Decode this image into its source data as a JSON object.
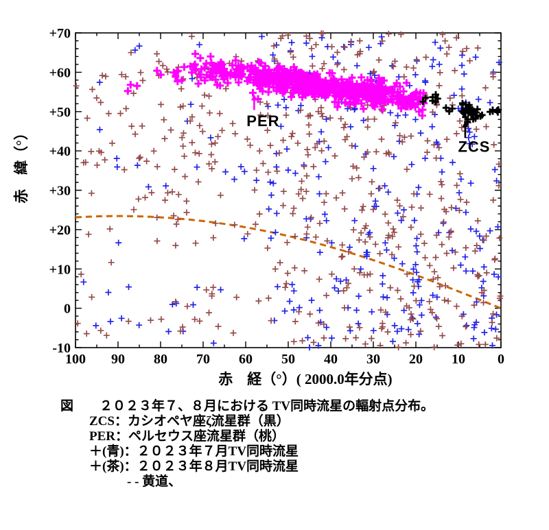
{
  "chart_data": {
    "type": "scatter",
    "title": "TV同時流星の輻射点分布",
    "xlabel": "赤　経（°）( 2000.0年分点)",
    "ylabel": "赤　緯（°）",
    "xlim": [
      100,
      0
    ],
    "ylim": [
      -10,
      70
    ],
    "x_minor_step": 5,
    "y_minor_step": 2,
    "grid": false,
    "legend_position": "below-figure-caption",
    "seed": 13,
    "x_ticks": [
      [
        100,
        "100"
      ],
      [
        90,
        "90"
      ],
      [
        80,
        "80"
      ],
      [
        70,
        "70"
      ],
      [
        60,
        "60"
      ],
      [
        50,
        "50"
      ],
      [
        40,
        "40"
      ],
      [
        30,
        "30"
      ],
      [
        20,
        "20"
      ],
      [
        10,
        "10"
      ],
      [
        0,
        "0"
      ]
    ],
    "y_ticks": [
      [
        70,
        "+70"
      ],
      [
        60,
        "+60"
      ],
      [
        50,
        "+50"
      ],
      [
        40,
        "+40"
      ],
      [
        30,
        "+30"
      ],
      [
        20,
        "+20"
      ],
      [
        10,
        "+10"
      ],
      [
        0,
        "0"
      ],
      [
        -10,
        "-10"
      ]
    ],
    "ecliptic": {
      "name": "黄道",
      "color": "#cc6600",
      "obliquity_deg": 23.44,
      "dash": [
        9,
        6
      ],
      "width": 3
    },
    "series": [
      {
        "key": "jul",
        "name": "２０２３年７月TV同時流星",
        "marker": "plus",
        "color": "#2323e8",
        "size": 4.5,
        "stroke_width": 1.7,
        "clusters": [
          {
            "type": "uniform",
            "ra": [
              0,
              55
            ],
            "dec": [
              -10,
              70
            ],
            "count": 250
          },
          {
            "type": "uniform",
            "ra": [
              55,
              100
            ],
            "dec": [
              -10,
              70
            ],
            "count": 38
          }
        ]
      },
      {
        "key": "aug",
        "name": "２０２３年８月TV同時流星",
        "marker": "plus",
        "color": "#964b4b",
        "size": 4.5,
        "stroke_width": 1.7,
        "clusters": [
          {
            "type": "uniform",
            "ra": [
              0,
              55
            ],
            "dec": [
              -10,
              70
            ],
            "count": 340
          },
          {
            "type": "uniform",
            "ra": [
              55,
              100
            ],
            "dec": [
              -8,
              66
            ],
            "count": 70
          },
          {
            "type": "gauss",
            "ra0": 70,
            "dec0": 42,
            "sx": 12,
            "sy": 13,
            "count": 70
          },
          {
            "type": "gauss",
            "ra0": 80,
            "dec0": 52,
            "sx": 8,
            "sy": 6,
            "count": 18
          }
        ]
      },
      {
        "key": "per",
        "name": "ペルセウス座流星群",
        "marker": "plus",
        "color": "#ff00ff",
        "size": 5.5,
        "stroke_width": 3,
        "clusters": [
          {
            "type": "band",
            "ra": [
              18,
              73
            ],
            "dec": [
              52.6,
              61.2
            ],
            "sigma": 1.6,
            "count": 330
          },
          {
            "type": "band",
            "ra": [
              27,
              58
            ],
            "dec": [
              54.0,
              58.9
            ],
            "sigma": 1.7,
            "count": 300
          },
          {
            "type": "gauss",
            "ra0": 76,
            "dec0": 59.5,
            "sx": 1.8,
            "sy": 1.5,
            "count": 8
          },
          {
            "type": "gauss",
            "ra0": 80.2,
            "dec0": 60.2,
            "sx": 0.6,
            "sy": 0.6,
            "count": 2
          },
          {
            "type": "gauss",
            "ra0": 86.8,
            "dec0": 55.8,
            "sx": 0.7,
            "sy": 1.3,
            "count": 3
          }
        ]
      },
      {
        "key": "zcs",
        "name": "カシオペヤ座ζ流星群",
        "marker": "plus",
        "color": "#000000",
        "size": 5,
        "stroke_width": 2.8,
        "clusters": [
          {
            "type": "gauss",
            "ra0": 7.5,
            "dec0": 50.2,
            "sx": 2.3,
            "sy": 1.1,
            "count": 34
          },
          {
            "type": "uniform",
            "ra": [
              13,
              18.5
            ],
            "dec": [
              52,
              54.5
            ],
            "count": 7
          },
          {
            "type": "uniform",
            "ra": [
              0.2,
              3.5
            ],
            "dec": [
              49.6,
              50.6
            ],
            "count": 6
          }
        ]
      }
    ],
    "annotations": [
      {
        "label": "PER",
        "color": "#ff00ff",
        "text_ra": 55.9,
        "text_dec": 46.3,
        "arrow_ra": 58.0,
        "arrow_dec_from": 50.4,
        "arrow_dec_to": 54.4
      },
      {
        "label": "ZCS",
        "color": "#000000",
        "text_ra": 6.3,
        "text_dec": 39.8,
        "arrow_ra": 8.4,
        "arrow_dec_from": 43.3,
        "arrow_dec_to": 47.6
      }
    ]
  },
  "caption": {
    "lines": [
      {
        "text": "図　　２０２３年７、８月における TV同時流星の輻射点分布。",
        "indent": 0
      },
      {
        "text": "ZCS：カシオペヤ座ζ流星群（黒）",
        "indent": 1
      },
      {
        "text": "PER：ペルセウス座流星群（桃）",
        "indent": 1
      },
      {
        "text": "＋(青)：２０２３年７月TV同時流星",
        "indent": 1
      },
      {
        "text": "＋(茶)：２０２３年８月TV同時流星",
        "indent": 1
      },
      {
        "text": "- - 黄道、",
        "indent": 2
      }
    ]
  }
}
